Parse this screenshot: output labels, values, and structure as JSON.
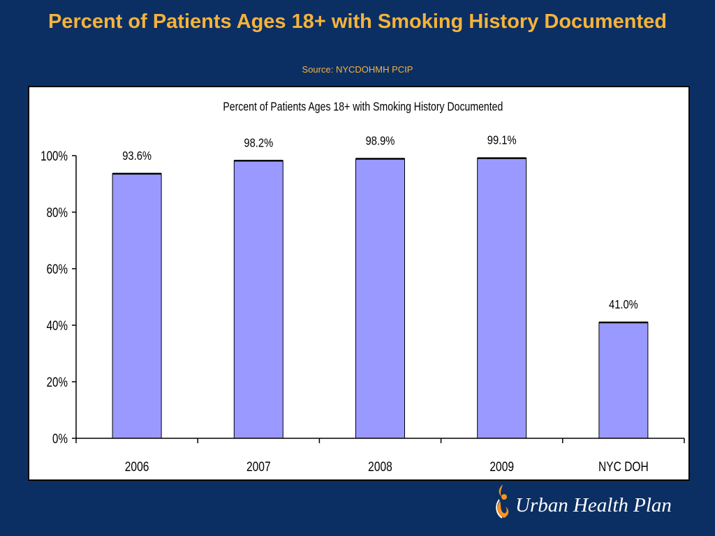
{
  "slide": {
    "title": "Percent of Patients Ages 18+ with Smoking History Documented",
    "source": "Source: NYCDOHMH PCIP"
  },
  "logo": {
    "name": "Urban Health Plan",
    "icon": "flame-person-icon",
    "colors": {
      "orange": "#f7931e",
      "white": "#ffffff"
    }
  },
  "colors": {
    "background": "#0b2f63",
    "title": "#f5b33a",
    "bar_fill": "#9999ff",
    "bar_top": "#000000"
  },
  "chart_data": {
    "type": "bar",
    "title": "Percent of Patients Ages 18+ with Smoking History Documented",
    "categories": [
      "2006",
      "2007",
      "2008",
      "2009",
      "NYC DOH"
    ],
    "values": [
      93.6,
      98.2,
      98.9,
      99.1,
      41.0
    ],
    "data_labels": [
      "93.6%",
      "98.2%",
      "98.9%",
      "99.1%",
      "41.0%"
    ],
    "ylim": [
      0,
      100
    ],
    "yticks": [
      0,
      20,
      40,
      60,
      80,
      100
    ],
    "ytick_labels": [
      "0%",
      "20%",
      "40%",
      "60%",
      "80%",
      "100%"
    ],
    "xlabel": "",
    "ylabel": "",
    "grid": false,
    "legend": "none"
  }
}
